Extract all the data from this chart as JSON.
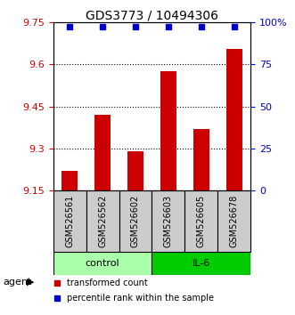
{
  "title": "GDS3773 / 10494306",
  "samples": [
    "GSM526561",
    "GSM526562",
    "GSM526602",
    "GSM526603",
    "GSM526605",
    "GSM526678"
  ],
  "bar_values": [
    9.22,
    9.42,
    9.29,
    9.575,
    9.37,
    9.655
  ],
  "percentile_values": [
    97,
    97,
    97,
    97,
    97,
    97
  ],
  "ylim_left": [
    9.15,
    9.75
  ],
  "ylim_right": [
    0,
    100
  ],
  "yticks_left": [
    9.15,
    9.3,
    9.45,
    9.6,
    9.75
  ],
  "yticks_right": [
    0,
    25,
    50,
    75,
    100
  ],
  "bar_color": "#cc0000",
  "dot_color": "#0000cc",
  "bar_width": 0.5,
  "control_label": "control",
  "il6_label": "IL-6",
  "agent_label": "agent",
  "control_color": "#aaffaa",
  "il6_color": "#00cc00",
  "control_indices": [
    0,
    1,
    2
  ],
  "il6_indices": [
    3,
    4,
    5
  ],
  "legend_bar_label": "transformed count",
  "legend_dot_label": "percentile rank within the sample",
  "grid_yticks": [
    9.3,
    9.45,
    9.6
  ],
  "box_color": "#cccccc"
}
